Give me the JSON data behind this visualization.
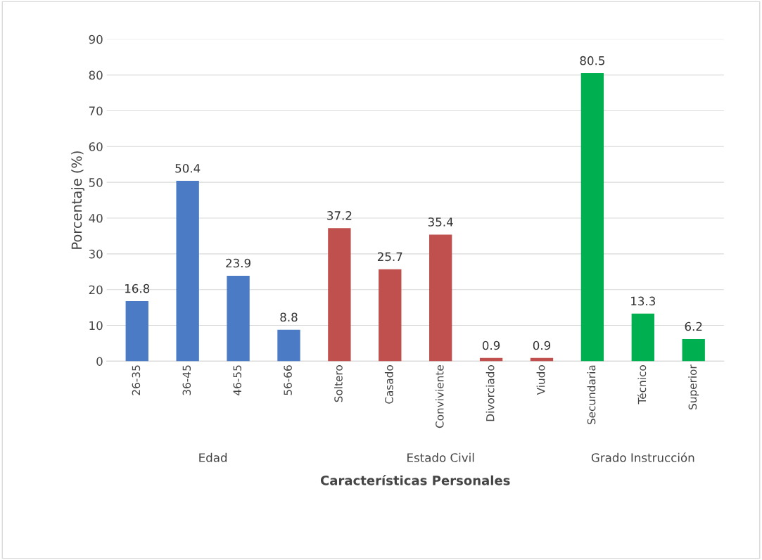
{
  "chart_data": {
    "type": "bar",
    "xlabel": "Características Personales",
    "ylabel": "Porcentaje (%)",
    "categories": [
      "26-35",
      "36-45",
      "46-55",
      "56-66",
      "Soltero",
      "Casado",
      "Conviviente",
      "Divorciado",
      "Viudo",
      "Secundaria",
      "Técnico",
      "Superior"
    ],
    "values": [
      16.8,
      50.4,
      23.9,
      8.8,
      37.2,
      25.7,
      35.4,
      0.9,
      0.9,
      80.5,
      13.3,
      6.2
    ],
    "colors": [
      "#4a7bc4",
      "#4a7bc4",
      "#4a7bc4",
      "#4a7bc4",
      "#c0504d",
      "#c0504d",
      "#c0504d",
      "#c0504d",
      "#c0504d",
      "#00b050",
      "#00b050",
      "#00b050"
    ],
    "annotations": [
      "Edad",
      "Estado Civil",
      "Grado Instrucción"
    ],
    "ylim": [
      0,
      90
    ],
    "yticks": [
      0,
      10,
      20,
      30,
      40,
      50,
      60,
      70,
      80,
      90
    ],
    "grid": "y",
    "data_labels": true,
    "legend": false
  }
}
